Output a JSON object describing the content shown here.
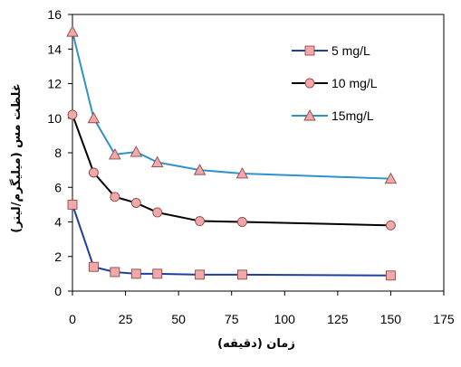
{
  "chart_data": {
    "type": "line",
    "xlabel": "زمان (دقيقه)",
    "ylabel": "غلظت مس (ميليگرم/ليتر)",
    "xlim": [
      0,
      175
    ],
    "ylim": [
      0,
      16
    ],
    "xticks": [
      0,
      25,
      50,
      75,
      100,
      125,
      150,
      175
    ],
    "yticks": [
      0,
      2,
      4,
      6,
      8,
      10,
      12,
      14,
      16
    ],
    "grid": false,
    "legend_position": "top-right",
    "x": [
      0,
      10,
      20,
      30,
      40,
      60,
      80,
      150
    ],
    "series": [
      {
        "name": "5 mg/L",
        "marker": "square",
        "line_color": "#1f3fa0",
        "marker_fill": "#f2a8a8",
        "values": [
          5.0,
          1.4,
          1.1,
          1.0,
          1.0,
          0.95,
          0.95,
          0.9
        ]
      },
      {
        "name": "10 mg/L",
        "marker": "circle",
        "line_color": "#000000",
        "marker_fill": "#f2a8a8",
        "values": [
          10.2,
          6.85,
          5.45,
          5.1,
          4.55,
          4.05,
          4.0,
          3.8
        ]
      },
      {
        "name": "15mg/L",
        "marker": "triangle",
        "line_color": "#2f93c8",
        "marker_fill": "#f2a8a8",
        "values": [
          15.0,
          10.0,
          7.9,
          8.05,
          7.45,
          7.0,
          6.8,
          6.5
        ]
      }
    ]
  }
}
